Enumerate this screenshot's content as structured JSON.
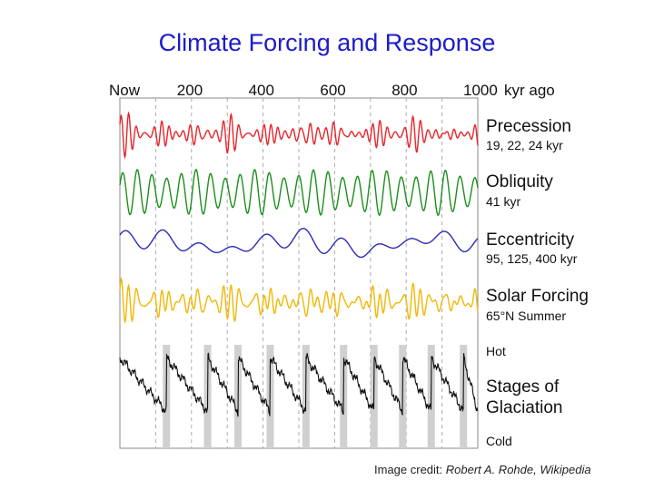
{
  "title": "Climate Forcing and Response",
  "credit": {
    "prefix": "Image credit: ",
    "author": "Robert A. Rohde, Wikipedia"
  },
  "chart_data": {
    "type": "line",
    "x_axis": {
      "ticks": [
        "Now",
        "200",
        "400",
        "600",
        "800",
        "1000"
      ],
      "tick_values": [
        0,
        200,
        400,
        600,
        800,
        1000
      ],
      "unit_label": "kyr ago",
      "range": [
        0,
        1000
      ],
      "gridlines": "dashed vertical at 100 kyr intervals"
    },
    "series": [
      {
        "name": "Precession",
        "sub": "19, 22, 24 kyr",
        "color": "#e8252b",
        "periods": [
          19,
          22,
          24
        ]
      },
      {
        "name": "Obliquity",
        "sub": "41 kyr",
        "color": "#1a8f1a",
        "periods": [
          41
        ]
      },
      {
        "name": "Eccentricity",
        "sub": "95, 125, 400 kyr",
        "color": "#2a2ab8",
        "periods": [
          95,
          125,
          400
        ]
      },
      {
        "name": "Solar Forcing",
        "sub": "65°N Summer",
        "color": "#f2b705"
      },
      {
        "name": "Stages of Glaciation",
        "sub": "Glaciation",
        "color": "#111111",
        "scale_top": "Hot",
        "scale_bottom": "Cold"
      }
    ],
    "glacial_terminations_kyr": [
      130,
      245,
      330,
      420,
      520,
      625,
      710,
      790,
      870,
      960
    ]
  }
}
